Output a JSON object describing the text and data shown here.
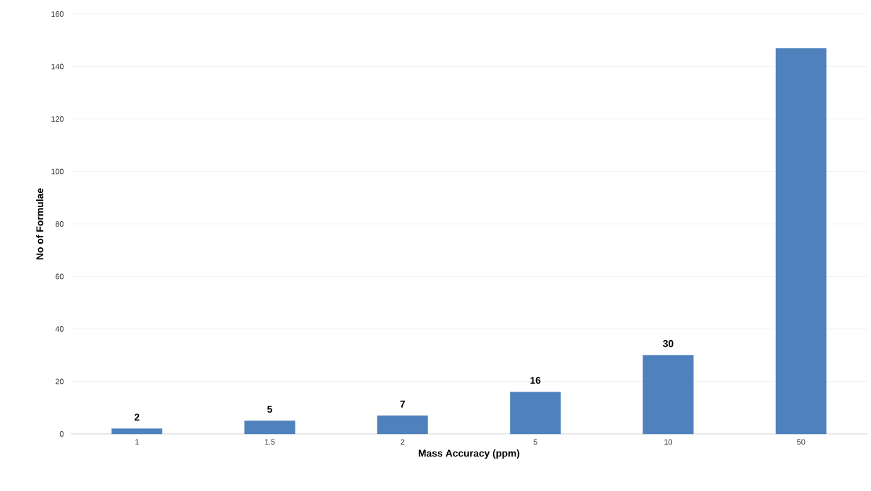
{
  "chart_data": {
    "type": "bar",
    "xlabel": "Mass Accuracy (ppm)",
    "ylabel": "No of Formulae",
    "categories": [
      "1",
      "1.5",
      "2",
      "5",
      "10",
      "50"
    ],
    "values": [
      2,
      5,
      7,
      16,
      30,
      147
    ],
    "value_labels": [
      "2",
      "5",
      "7",
      "16",
      "30",
      null
    ],
    "color": "#4f81bd",
    "ylim": [
      0,
      160
    ],
    "yticks": [
      0,
      20,
      40,
      60,
      80,
      100,
      120,
      140,
      160
    ],
    "grid": "y"
  }
}
